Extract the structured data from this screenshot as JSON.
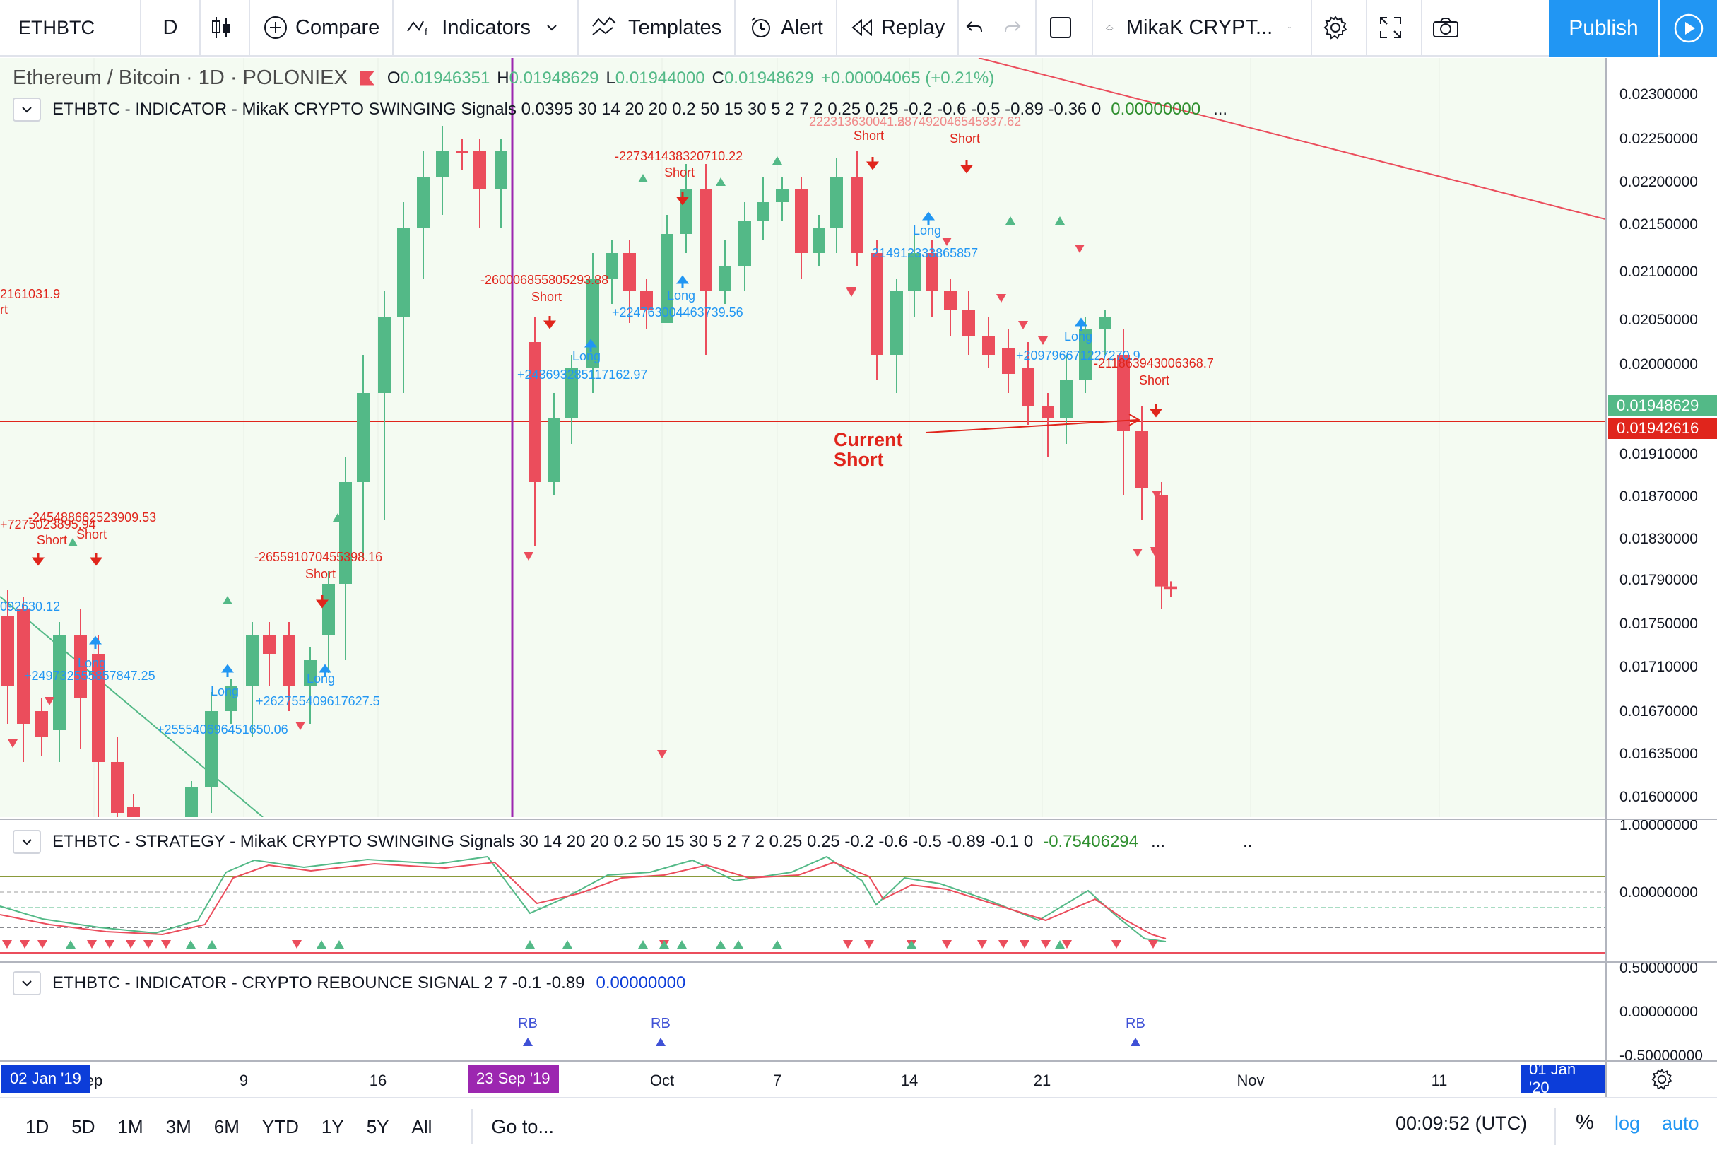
{
  "toolbar": {
    "symbol": "ETHBTC",
    "interval": "D",
    "compare_label": "Compare",
    "indicators_label": "Indicators",
    "templates_label": "Templates",
    "alert_label": "Alert",
    "replay_label": "Replay",
    "layout_name": "MikaK CRYPT...",
    "publish_label": "Publish"
  },
  "main_legend": {
    "title": "Ethereum / Bitcoin · 1D · POLONIEX",
    "o_label": "O",
    "o_value": "0.01946351",
    "h_label": "H",
    "h_value": "0.01948629",
    "l_label": "L",
    "l_value": "0.01944000",
    "c_label": "C",
    "c_value": "0.01948629",
    "change": "+0.00004065 (+0.21%)",
    "indicator_text": "ETHBTC - INDICATOR - MikaK CRYPTO SWINGING Signals 0.0395 30 14 20 20 0.2 50 15 30 5 2 7 2 0.25 0.25 -0.2 -0.6 -0.5 -0.89 -0.36 0",
    "indicator_value": "0.00000000",
    "ellipsis": "..."
  },
  "strategy_legend": {
    "text": "ETHBTC - STRATEGY - MikaK CRYPTO SWINGING Signals 30 14 20 20 0.2 50 15 30 5 2 7 2 0.25 0.25 -0.2 -0.6 -0.5 -0.89 -0.1 0",
    "value": "-0.75406294",
    "ellipsis": "...",
    "dots": ".."
  },
  "rebounce_legend": {
    "text": "ETHBTC - INDICATOR - CRYPTO REBOUNCE SIGNAL 2 7 -0.1 -0.89",
    "value": "0.00000000",
    "rb_label": "RB"
  },
  "price_axis": {
    "labels": [
      "0.02300000",
      "0.02250000",
      "0.02200000",
      "0.02150000",
      "0.02100000",
      "0.02050000",
      "0.02000000",
      "0.01910000",
      "0.01870000",
      "0.01830000",
      "0.01790000",
      "0.01750000",
      "0.01710000",
      "0.01670000",
      "0.01635000",
      "0.01600000"
    ],
    "last_price": "0.01948629",
    "current_line": "0.01942616",
    "strategy_labels": [
      "1.00000000",
      "0.00000000"
    ],
    "rebounce_labels": [
      "0.50000000",
      "0.00000000",
      "-0.50000000"
    ]
  },
  "time_axis": {
    "labels": [
      "ep",
      "9",
      "16",
      "Oct",
      "7",
      "14",
      "21",
      "Nov",
      "11"
    ],
    "badge_left": "02 Jan '19",
    "badge_mid": "23 Sep '19",
    "badge_right": "01 Jan '20"
  },
  "annotations": {
    "current_short": "Current\nShort",
    "short_label": "Short",
    "long_label": "Long",
    "profits": [
      "2161031.9",
      "rt",
      "-245488662523909.53",
      "+7275023895.94",
      "092630.12",
      "+249732555857847.25",
      "+255540696451650.06",
      "+262755409617627.5",
      "-265591070455398.16",
      "-260006855805293.88",
      "+243693285117162.97",
      "-227341438320710.22",
      "+224763004463739.56",
      "222313630041.5",
      "287492046545837.62",
      "214912333865857",
      "+209796671227270.9",
      "-211863943006368.7"
    ]
  },
  "bottom_bar": {
    "ranges": [
      "1D",
      "5D",
      "1M",
      "3M",
      "6M",
      "YTD",
      "1Y",
      "5Y",
      "All"
    ],
    "goto_label": "Go to...",
    "clock": "00:09:52 (UTC)",
    "percent": "%",
    "log": "log",
    "auto": "auto"
  },
  "colors": {
    "up": "#53b987",
    "down": "#eb4d5c",
    "long_text": "#2196f3",
    "short_text": "#e0251c",
    "pane_bg": "#f4fbf2",
    "purple_line": "#9c27b0",
    "time_badge_blue": "#0c3dd9"
  }
}
